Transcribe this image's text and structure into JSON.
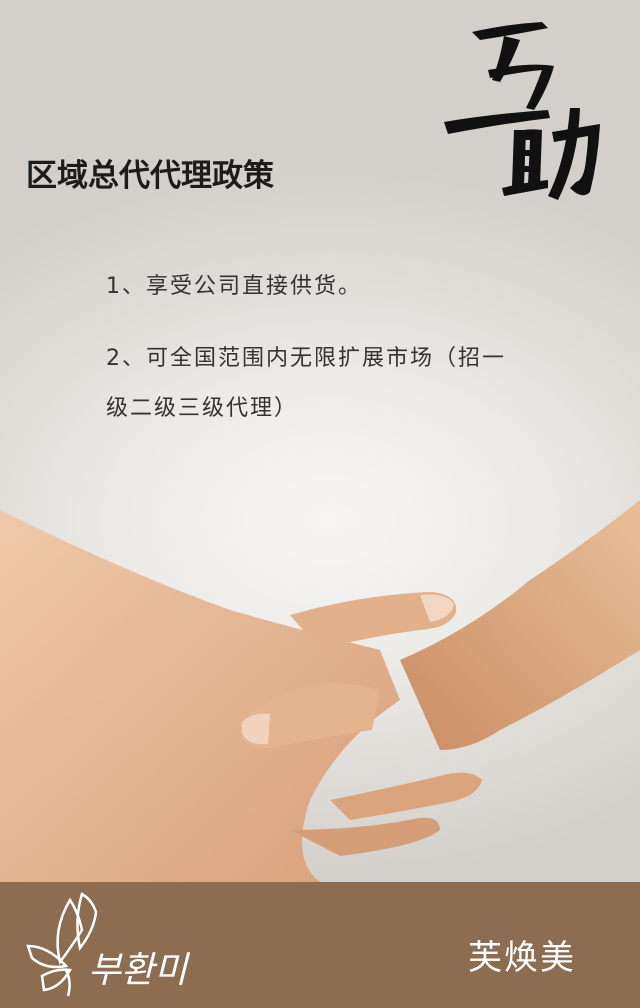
{
  "calligraphy": {
    "text": "互助"
  },
  "policy": {
    "title": "区域总代代理政策",
    "items": [
      "1、享受公司直接供货。",
      "2、可全国范围内无限扩展市场（招一级二级三级代理）"
    ]
  },
  "footer": {
    "logo_text": "부환미",
    "brand_name": "芙焕美"
  },
  "colors": {
    "footer_bg": "#8c6d52",
    "title_text": "#1c1c1c",
    "body_text": "#333333"
  }
}
